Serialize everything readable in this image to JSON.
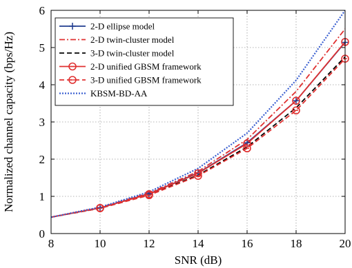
{
  "chart_data": {
    "type": "line",
    "title": "",
    "xlabel": "SNR (dB)",
    "ylabel": "Normalized channel capacity (bps/Hz)",
    "xlim": [
      8,
      20
    ],
    "ylim": [
      0,
      6
    ],
    "xticks": [
      8,
      10,
      12,
      14,
      16,
      18,
      20
    ],
    "yticks": [
      0,
      1,
      2,
      3,
      4,
      5,
      6
    ],
    "grid": true,
    "legend_position": "top-left",
    "series": [
      {
        "name": "2-D ellipse model",
        "color": "#1f3b8f",
        "dash": "solid",
        "marker": "plus",
        "x": [
          8,
          10,
          12,
          14,
          16,
          18,
          20
        ],
        "y": [
          0.44,
          0.69,
          1.07,
          1.63,
          2.44,
          3.57,
          5.14
        ]
      },
      {
        "name": "2-D twin-cluster model",
        "color": "#e03030",
        "dash": "dashdot",
        "marker": "none",
        "x": [
          8,
          10,
          12,
          14,
          16,
          18,
          20
        ],
        "y": [
          0.44,
          0.7,
          1.09,
          1.67,
          2.53,
          3.82,
          5.5
        ]
      },
      {
        "name": "3-D twin-cluster model",
        "color": "#000000",
        "dash": "dashed",
        "marker": "none",
        "x": [
          8,
          10,
          12,
          14,
          16,
          18,
          20
        ],
        "y": [
          0.44,
          0.68,
          1.04,
          1.57,
          2.33,
          3.38,
          4.75
        ]
      },
      {
        "name": "2-D unified GBSM framework",
        "color": "#e03030",
        "dash": "solid",
        "marker": "circle",
        "x": [
          8,
          10,
          12,
          14,
          16,
          18,
          20
        ],
        "y": [
          0.44,
          0.69,
          1.06,
          1.62,
          2.42,
          3.57,
          5.15
        ]
      },
      {
        "name": "3-D unified GBSM framework",
        "color": "#e03030",
        "dash": "dashed",
        "marker": "circle-dot",
        "x": [
          8,
          10,
          12,
          14,
          16,
          18,
          20
        ],
        "y": [
          0.44,
          0.68,
          1.03,
          1.55,
          2.29,
          3.31,
          4.7
        ]
      },
      {
        "name": "KBSM-BD-AA",
        "color": "#3a5fd0",
        "dash": "dotted",
        "marker": "none",
        "x": [
          8,
          10,
          12,
          14,
          16,
          18,
          20
        ],
        "y": [
          0.44,
          0.71,
          1.12,
          1.75,
          2.7,
          4.12,
          6.0
        ]
      }
    ]
  }
}
